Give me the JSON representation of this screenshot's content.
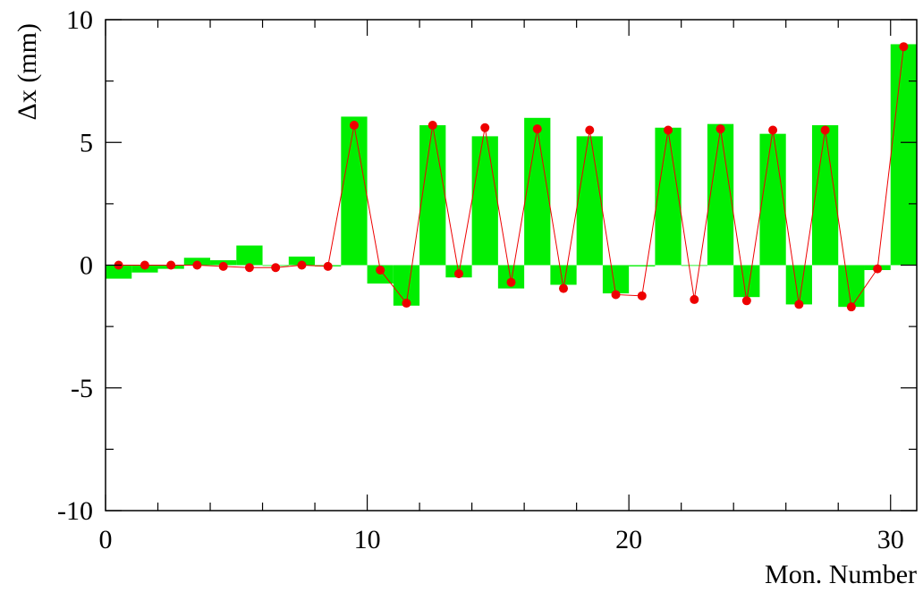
{
  "chart_data": {
    "type": "bar",
    "title": "",
    "xlabel": "Mon. Number",
    "ylabel": "Δx (mm)",
    "xlim": [
      0,
      31
    ],
    "ylim": [
      -10,
      10
    ],
    "x_ticks": [
      0,
      10,
      20,
      30
    ],
    "y_ticks": [
      -10,
      -5,
      0,
      5,
      10
    ],
    "grid": false,
    "legend": "none",
    "colors": {
      "bars": "#00ee00",
      "line": "#ee0000",
      "markers": "#ee0000",
      "axes": "#000000"
    },
    "series": [
      {
        "style": "histogram-bars",
        "x": [
          0.5,
          1.5,
          2.5,
          3.5,
          4.5,
          5.5,
          6.5,
          7.5,
          8.5,
          9.5,
          10.5,
          11.5,
          12.5,
          13.5,
          14.5,
          15.5,
          16.5,
          17.5,
          18.5,
          19.5,
          20.5,
          21.5,
          22.5,
          23.5,
          24.5,
          25.5,
          26.5,
          27.5,
          28.5,
          29.5,
          30.5
        ],
        "values": [
          -0.55,
          -0.3,
          -0.15,
          0.3,
          0.2,
          0.8,
          0.0,
          0.35,
          -0.05,
          6.05,
          -0.75,
          -1.65,
          5.7,
          -0.5,
          5.25,
          -0.95,
          6.0,
          -0.8,
          5.25,
          -1.15,
          -0.05,
          5.6,
          0.0,
          5.75,
          -1.3,
          5.35,
          -1.6,
          5.7,
          -1.7,
          -0.2,
          9.0
        ]
      },
      {
        "style": "line-markers",
        "x": [
          0.5,
          1.5,
          2.5,
          3.5,
          4.5,
          5.5,
          6.5,
          7.5,
          8.5,
          9.5,
          10.5,
          11.5,
          12.5,
          13.5,
          14.5,
          15.5,
          16.5,
          17.5,
          18.5,
          19.5,
          20.5,
          21.5,
          22.5,
          23.5,
          24.5,
          25.5,
          26.5,
          27.5,
          28.5,
          29.5,
          30.5
        ],
        "values": [
          0.0,
          0.0,
          0.0,
          0.0,
          -0.05,
          -0.1,
          -0.1,
          0.0,
          -0.05,
          5.7,
          -0.2,
          -1.55,
          5.7,
          -0.35,
          5.6,
          -0.7,
          5.55,
          -0.95,
          5.5,
          -1.2,
          -1.25,
          5.5,
          -1.4,
          5.55,
          -1.45,
          5.5,
          -1.6,
          5.5,
          -1.7,
          -0.15,
          8.9
        ]
      }
    ]
  }
}
